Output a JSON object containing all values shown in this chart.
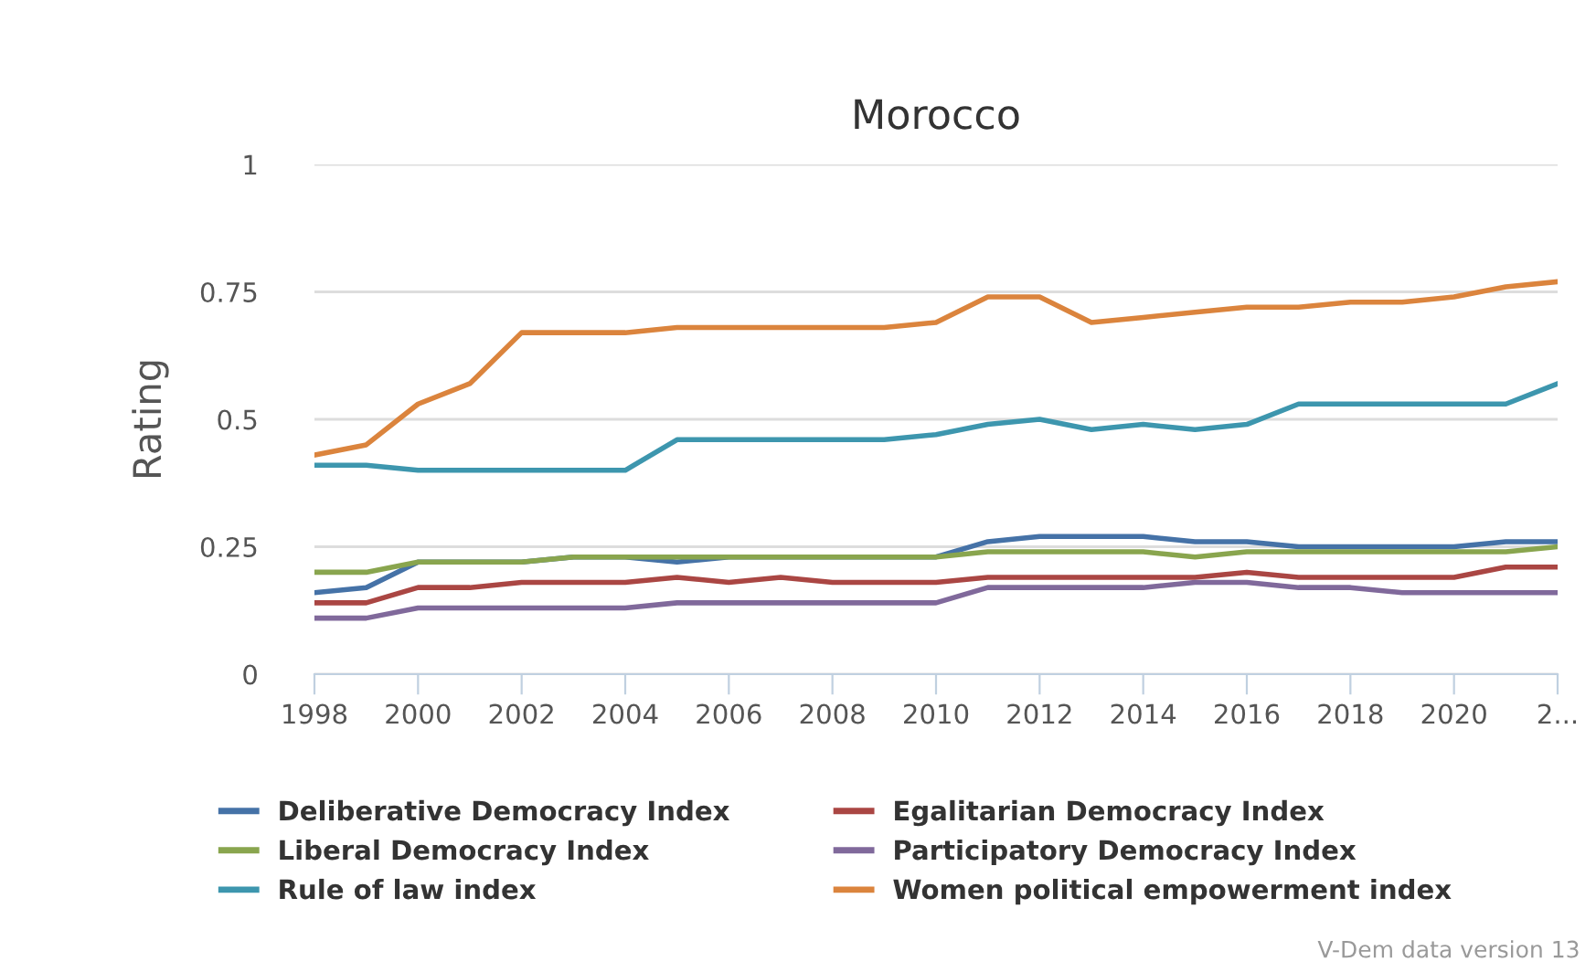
{
  "chart_data": {
    "type": "line",
    "title": "Morocco",
    "ylabel": "Rating",
    "x": [
      1998,
      1999,
      2000,
      2001,
      2002,
      2003,
      2004,
      2005,
      2006,
      2007,
      2008,
      2009,
      2010,
      2011,
      2012,
      2013,
      2014,
      2015,
      2016,
      2017,
      2018,
      2019,
      2020,
      2021,
      2022
    ],
    "series": [
      {
        "name": "Deliberative Democracy Index",
        "color": "#4572a7",
        "values": [
          0.16,
          0.17,
          0.22,
          0.22,
          0.22,
          0.23,
          0.23,
          0.22,
          0.23,
          0.23,
          0.23,
          0.23,
          0.23,
          0.26,
          0.27,
          0.27,
          0.27,
          0.26,
          0.26,
          0.25,
          0.25,
          0.25,
          0.25,
          0.26,
          0.26
        ]
      },
      {
        "name": "Egalitarian Democracy Index",
        "color": "#aa4643",
        "values": [
          0.14,
          0.14,
          0.17,
          0.17,
          0.18,
          0.18,
          0.18,
          0.19,
          0.18,
          0.19,
          0.18,
          0.18,
          0.18,
          0.19,
          0.19,
          0.19,
          0.19,
          0.19,
          0.2,
          0.19,
          0.19,
          0.19,
          0.19,
          0.21,
          0.21
        ]
      },
      {
        "name": "Liberal Democracy Index",
        "color": "#89a54e",
        "values": [
          0.2,
          0.2,
          0.22,
          0.22,
          0.22,
          0.23,
          0.23,
          0.23,
          0.23,
          0.23,
          0.23,
          0.23,
          0.23,
          0.24,
          0.24,
          0.24,
          0.24,
          0.23,
          0.24,
          0.24,
          0.24,
          0.24,
          0.24,
          0.24,
          0.25
        ]
      },
      {
        "name": "Participatory Democracy Index",
        "color": "#80699b",
        "values": [
          0.11,
          0.11,
          0.13,
          0.13,
          0.13,
          0.13,
          0.13,
          0.14,
          0.14,
          0.14,
          0.14,
          0.14,
          0.14,
          0.17,
          0.17,
          0.17,
          0.17,
          0.18,
          0.18,
          0.17,
          0.17,
          0.16,
          0.16,
          0.16,
          0.16
        ]
      },
      {
        "name": "Rule of law index",
        "color": "#3d96ae",
        "values": [
          0.41,
          0.41,
          0.4,
          0.4,
          0.4,
          0.4,
          0.4,
          0.46,
          0.46,
          0.46,
          0.46,
          0.46,
          0.47,
          0.49,
          0.5,
          0.48,
          0.49,
          0.48,
          0.49,
          0.53,
          0.53,
          0.53,
          0.53,
          0.53,
          0.57
        ]
      },
      {
        "name": "Women political empowerment index",
        "color": "#db843d",
        "values": [
          0.43,
          0.45,
          0.53,
          0.57,
          0.67,
          0.67,
          0.67,
          0.68,
          0.68,
          0.68,
          0.68,
          0.68,
          0.69,
          0.74,
          0.74,
          0.69,
          0.7,
          0.71,
          0.72,
          0.72,
          0.73,
          0.73,
          0.74,
          0.76,
          0.77
        ]
      }
    ],
    "xlim": [
      1998,
      2022
    ],
    "xticks": [
      1998,
      2000,
      2002,
      2004,
      2006,
      2008,
      2010,
      2012,
      2014,
      2016,
      2018,
      2020,
      {
        "value": 2022,
        "label": "2..."
      }
    ],
    "ylim": [
      0,
      1
    ],
    "yticks": [
      0,
      0.25,
      0.5,
      0.75,
      1
    ],
    "grid": "y",
    "legend": "bottom",
    "marker": "none",
    "line_style": "solid",
    "annotations": [
      "V-Dem data version 13"
    ]
  }
}
